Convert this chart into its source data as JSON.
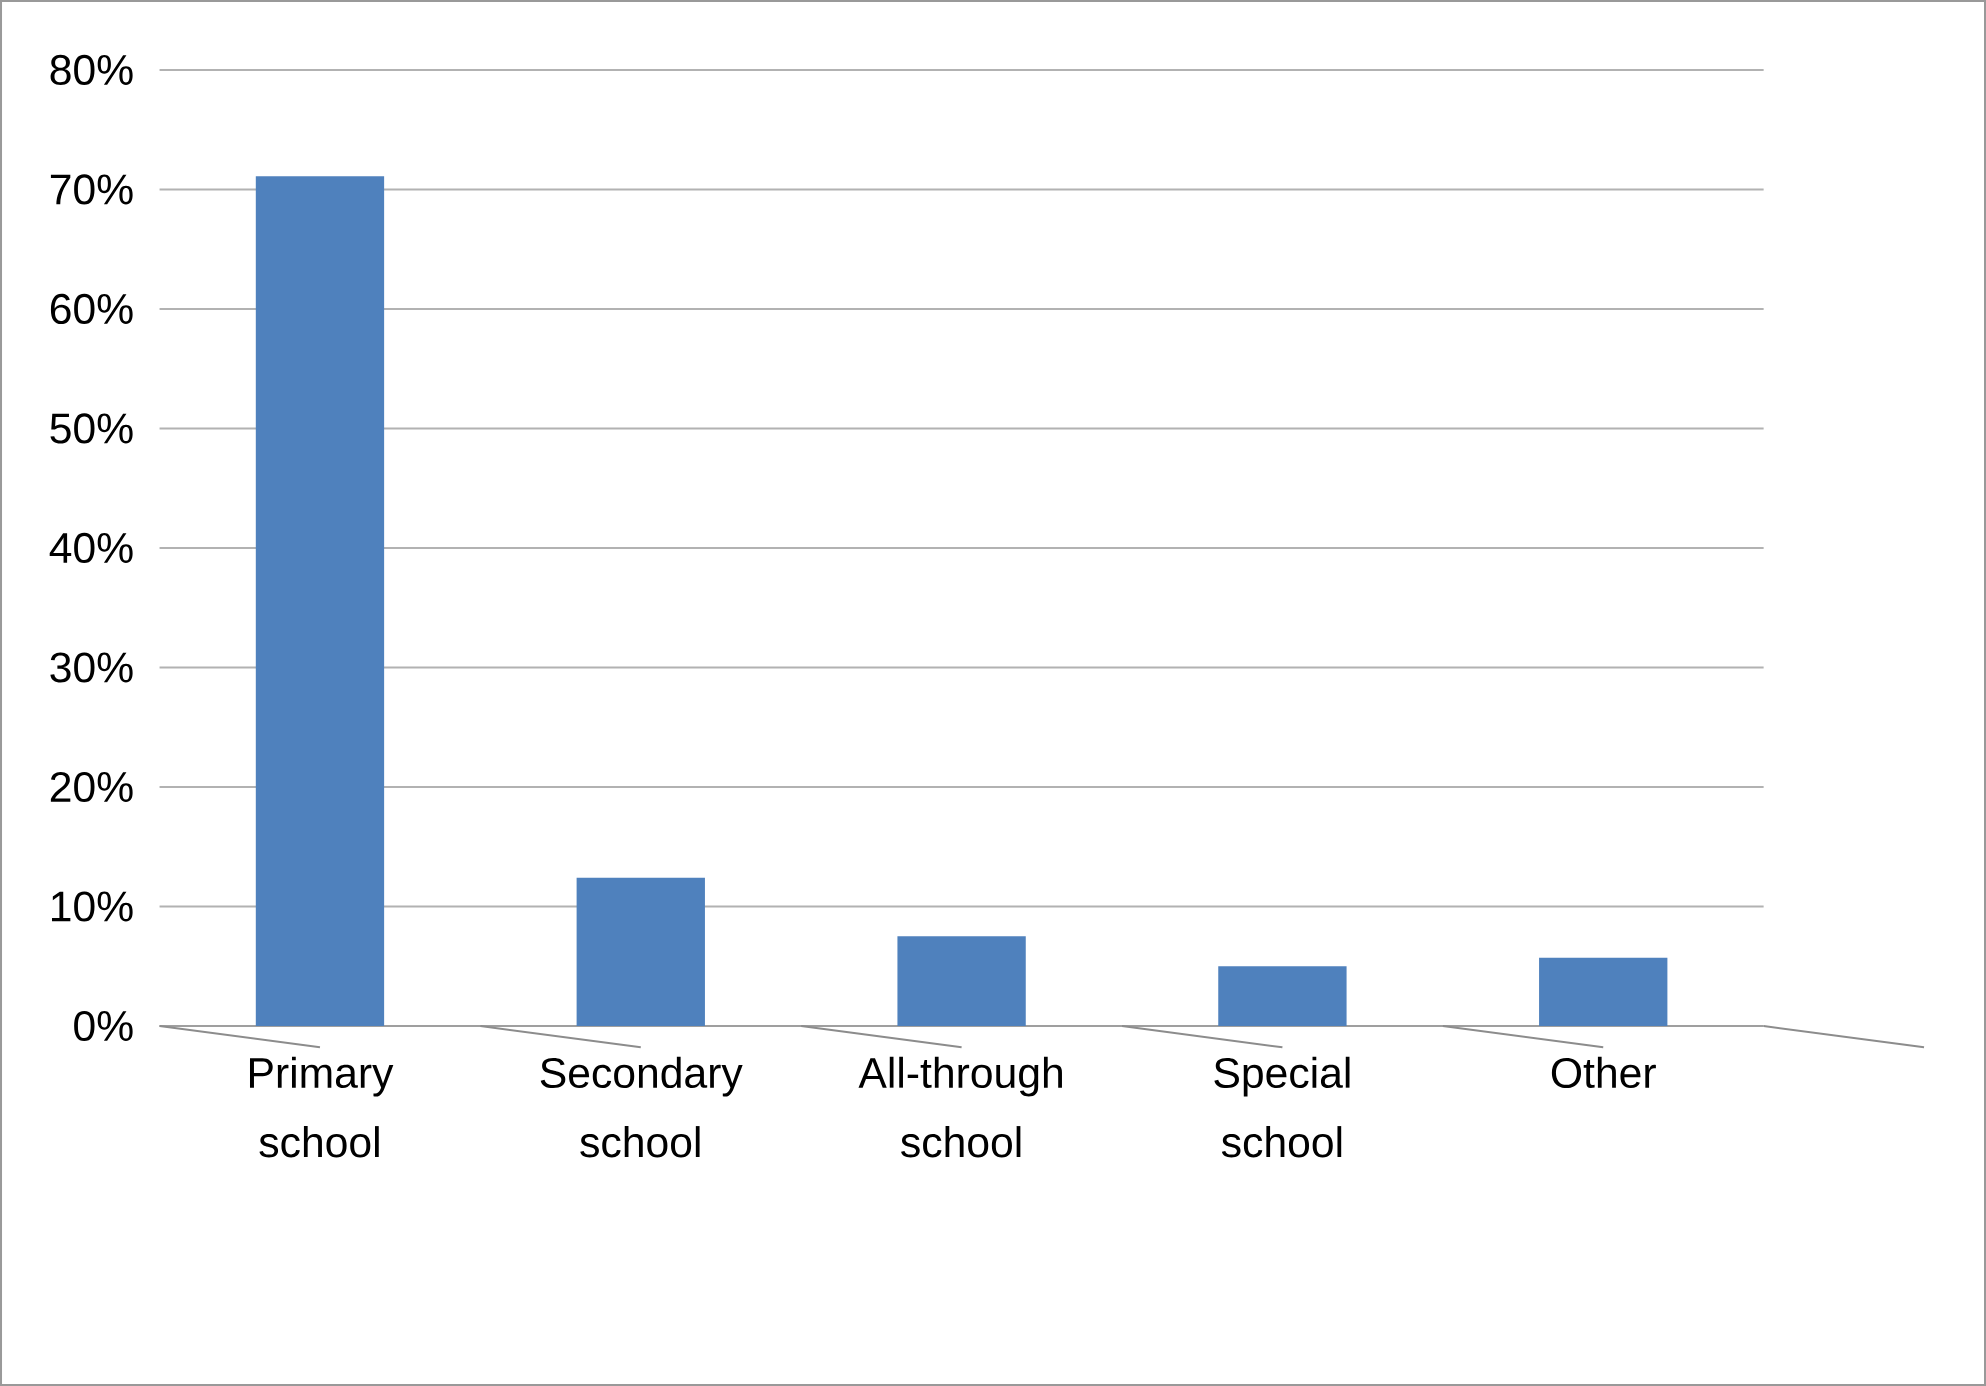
{
  "chart_data": {
    "type": "bar",
    "categories": [
      "Primary school",
      "Secondary school",
      "All-through school",
      "Special school",
      "Other"
    ],
    "values": [
      71.1,
      12.4,
      7.5,
      5.0,
      5.7
    ],
    "color": "#4f81bd",
    "ylim": [
      0,
      80
    ],
    "yticks": [
      {
        "value": 0,
        "label": "0%"
      },
      {
        "value": 10,
        "label": "10%"
      },
      {
        "value": 20,
        "label": "20%"
      },
      {
        "value": 30,
        "label": "30%"
      },
      {
        "value": 40,
        "label": "40%"
      },
      {
        "value": 50,
        "label": "50%"
      },
      {
        "value": 60,
        "label": "60%"
      },
      {
        "value": 70,
        "label": "70%"
      },
      {
        "value": 80,
        "label": "80%"
      }
    ],
    "grid": "y"
  }
}
